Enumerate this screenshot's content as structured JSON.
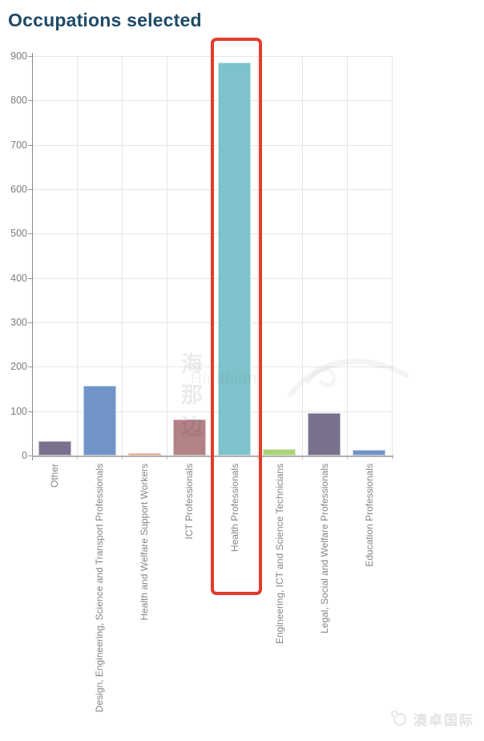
{
  "page": {
    "title": "Occupations selected"
  },
  "chart_data": {
    "type": "bar",
    "title": "Occupations selected",
    "categories": [
      "Other",
      "Design, Engineering, Science and Transport Professionals",
      "Health and Welfare Support Workers",
      "ICT Professionals",
      "Health Professionals",
      "Engineering, ICT and Science Technicians",
      "Legal, Social and Welfare Professionals",
      "Education Professionals"
    ],
    "values": [
      32,
      158,
      5,
      82,
      886,
      15,
      96,
      13
    ],
    "bar_colors": [
      "#79718e",
      "#7094c7",
      "#e59b77",
      "#b28287",
      "#7ec3cb",
      "#aad477",
      "#79718e",
      "#7094c7"
    ],
    "ylim": [
      0,
      900
    ],
    "ytick_step": 100,
    "xlabel": "",
    "ylabel": "",
    "grid": true,
    "legend": false,
    "highlight": {
      "category_index": 4,
      "label": "Health Professionals",
      "color": "#e23c2d"
    }
  },
  "watermarks": {
    "center_primary": "海那边",
    "center_secondary": "Hinabian",
    "brand": "澳卓国际"
  },
  "colors": {
    "title": "#1e4a68",
    "axis_label": "#7c7c7c",
    "gridline": "#e6e6e6",
    "highlight": "#e23c2d"
  }
}
